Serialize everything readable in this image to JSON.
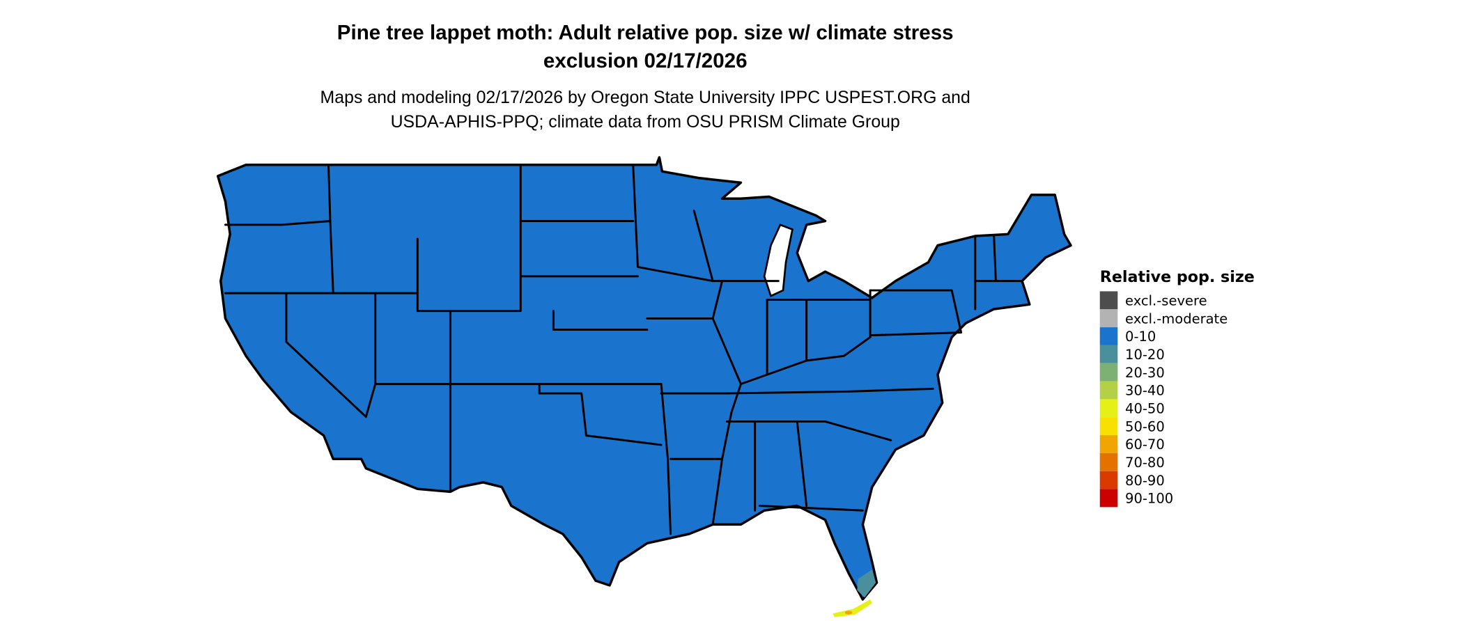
{
  "title": {
    "line1": "Pine tree lappet moth: Adult relative pop. size w/ climate stress",
    "line2": "exclusion 02/17/2026"
  },
  "subtitle": {
    "line1": "Maps and modeling 02/17/2026 by Oregon State University IPPC USPEST.ORG and",
    "line2": "USDA-APHIS-PPQ; climate data from OSU PRISM Climate Group"
  },
  "map": {
    "region": "Contiguous United States",
    "dominant_class": "0-10",
    "fill_color": "#1a73cc",
    "border_color": "#000000",
    "notable_areas": [
      {
        "area": "South Florida",
        "class": "10-20",
        "color": "#4a8f9c"
      },
      {
        "area": "Florida Keys",
        "class": "40-50",
        "color": "#e5f016"
      },
      {
        "area": "Florida Keys (spot)",
        "class": "60-70",
        "color": "#f0a500"
      }
    ]
  },
  "legend": {
    "title": "Relative pop. size",
    "items": [
      {
        "label": "excl.-severe",
        "color": "#4d4d4d"
      },
      {
        "label": "excl.-moderate",
        "color": "#b3b3b3"
      },
      {
        "label": "0-10",
        "color": "#1a73cc"
      },
      {
        "label": "10-20",
        "color": "#4a8f9c"
      },
      {
        "label": "20-30",
        "color": "#7db073"
      },
      {
        "label": "30-40",
        "color": "#b3d046"
      },
      {
        "label": "40-50",
        "color": "#e5f016"
      },
      {
        "label": "50-60",
        "color": "#f8e000"
      },
      {
        "label": "60-70",
        "color": "#f0a500"
      },
      {
        "label": "70-80",
        "color": "#e57200"
      },
      {
        "label": "80-90",
        "color": "#da3a00"
      },
      {
        "label": "90-100",
        "color": "#cc0000"
      }
    ]
  }
}
